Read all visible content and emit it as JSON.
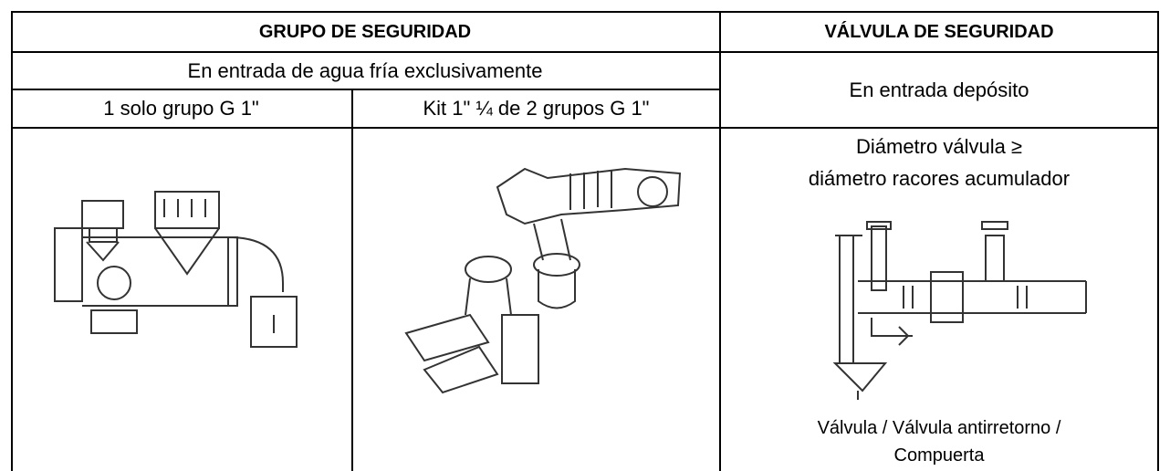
{
  "table": {
    "header": [
      "GRUPO DE SEGURIDAD",
      "VÁLVULA DE SEGURIDAD"
    ],
    "rows": [
      [
        "En entrada de agua fría exclusivamente",
        "En entrada depósito"
      ],
      [
        "1 solo grupo G 1\"",
        "Kit 1\" ¼ de 2 grupos G 1\""
      ]
    ],
    "valve_requirement": [
      "Diámetro válvula ≥",
      "diámetro racores acumulador"
    ],
    "valve_caption": [
      "Válvula / Válvula antirretorno /",
      "Compuerta"
    ]
  }
}
